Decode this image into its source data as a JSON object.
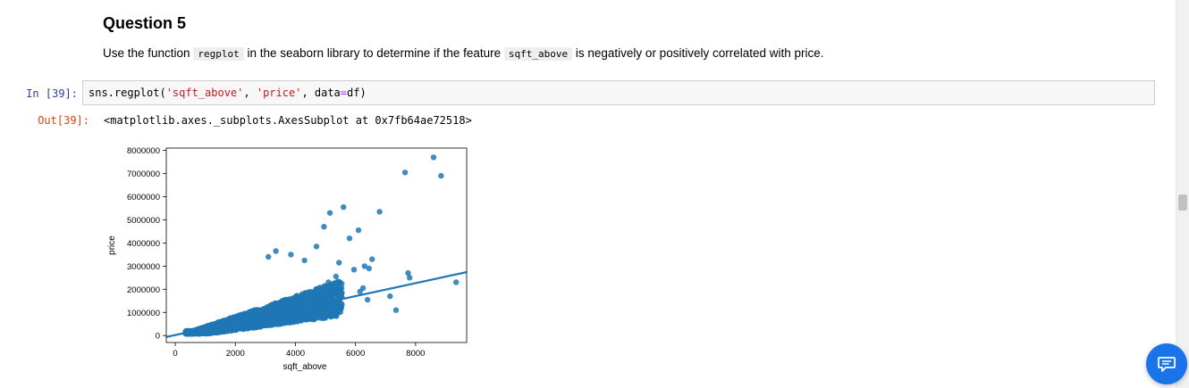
{
  "markdown": {
    "heading": "Question 5",
    "text_before": "Use the function",
    "code1": "regplot",
    "text_mid": "in the seaborn library to determine if the feature",
    "code2": "sqft_above",
    "text_after": "is negatively or positively correlated with price."
  },
  "input_cell": {
    "prompt": "In [39]:",
    "code_part1": "sns.regplot(",
    "code_str1": "'sqft_above'",
    "code_part2": ", ",
    "code_str2": "'price'",
    "code_part3": ", data",
    "code_eq": "=",
    "code_part4": "df)"
  },
  "output_cell": {
    "prompt": "Out[39]:",
    "text": "<matplotlib.axes._subplots.AxesSubplot at 0x7fb64ae72518>"
  },
  "colors": {
    "point": "#1f77b4",
    "in_prompt": "#303f9f",
    "out_prompt": "#d84315",
    "chat": "#1a73e8"
  },
  "icons": {
    "chat": "chat-bubble-icon"
  },
  "chart_data": {
    "type": "scatter",
    "title": "",
    "xlabel": "sqft_above",
    "ylabel": "price",
    "xlim": [
      -300,
      9700
    ],
    "ylim": [
      -300000,
      8100000
    ],
    "xticks": [
      0,
      2000,
      4000,
      6000,
      8000
    ],
    "yticks": [
      0,
      1000000,
      2000000,
      3000000,
      4000000,
      5000000,
      6000000,
      7000000,
      8000000
    ],
    "xtick_labels": [
      "0",
      "2000",
      "4000",
      "6000",
      "8000"
    ],
    "ytick_labels": [
      "0",
      "1000000",
      "2000000",
      "3000000",
      "4000000",
      "5000000",
      "6000000",
      "7000000",
      "8000000"
    ],
    "regression_line": {
      "x": [
        -300,
        9700
      ],
      "y": [
        -60000,
        2740000
      ]
    },
    "outliers": {
      "x": [
        8600,
        7650,
        8850,
        5600,
        6800,
        5150,
        4950,
        6100,
        5800,
        6550,
        6300,
        5450,
        4700,
        6450,
        7750,
        9350,
        7800,
        7350,
        6150,
        5350,
        3100,
        3350,
        3850,
        4300,
        5950,
        6400,
        7150,
        6250,
        5100
      ],
      "y": [
        7700000,
        7050000,
        6900000,
        5550000,
        5350000,
        5300000,
        4700000,
        4550000,
        4200000,
        3300000,
        3000000,
        3150000,
        3850000,
        2900000,
        2700000,
        2300000,
        2500000,
        1100000,
        1900000,
        2550000,
        3400000,
        3650000,
        3500000,
        3250000,
        2850000,
        1550000,
        1700000,
        2050000,
        2300000
      ]
    }
  }
}
